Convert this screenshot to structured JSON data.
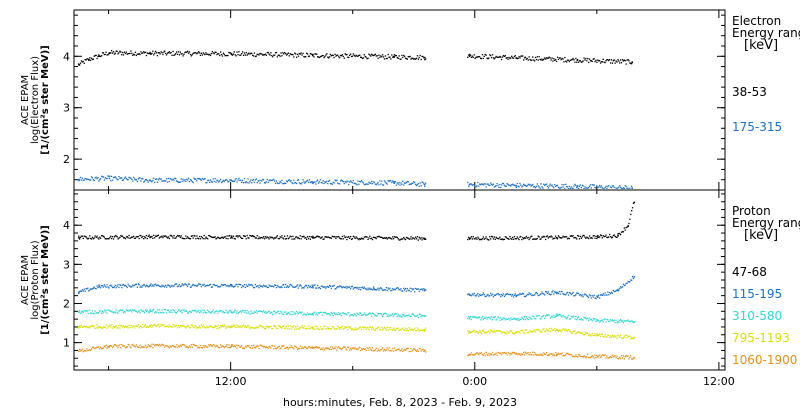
{
  "chart_data": {
    "type": "scatter",
    "xlabel": "hours:minutes, Feb.  8, 2023 - Feb.  9, 2023",
    "x_unit": "hours",
    "xlim": [
      4.3,
      36.3
    ],
    "x_ticks": [
      {
        "value": 12,
        "label": "12:00"
      },
      {
        "value": 24,
        "label": "0:00"
      },
      {
        "value": 36,
        "label": "12:00"
      }
    ],
    "data_gap_hours": [
      21.6,
      23.6
    ],
    "data_end_hours": 31.8,
    "panels": [
      {
        "name": "electron",
        "ylabel_lines": [
          "ACE EPAM",
          "log(Electron Flux)",
          "[1/(cm²s ster MeV)]"
        ],
        "ylim": [
          1.4,
          4.9
        ],
        "y_ticks": [
          2,
          3,
          4
        ],
        "legend_title": [
          "Electron",
          "Energy ranges",
          "[keV]"
        ],
        "series": [
          {
            "name": "38-53",
            "color": "#000000",
            "points": [
              [
                4.5,
                3.85
              ],
              [
                5.0,
                3.95
              ],
              [
                5.5,
                4.02
              ],
              [
                6.0,
                4.08
              ],
              [
                8.0,
                4.07
              ],
              [
                12.0,
                4.06
              ],
              [
                16.0,
                4.03
              ],
              [
                20.0,
                4.0
              ],
              [
                21.5,
                3.99
              ],
              [
                23.7,
                4.02
              ],
              [
                26.0,
                3.98
              ],
              [
                29.0,
                3.94
              ],
              [
                31.7,
                3.9
              ]
            ]
          },
          {
            "name": "175-315",
            "color": "#1c70c8",
            "points": [
              [
                4.5,
                1.62
              ],
              [
                6.0,
                1.64
              ],
              [
                8.0,
                1.6
              ],
              [
                12.0,
                1.6
              ],
              [
                16.0,
                1.57
              ],
              [
                20.0,
                1.55
              ],
              [
                21.5,
                1.52
              ],
              [
                23.7,
                1.52
              ],
              [
                26.0,
                1.5
              ],
              [
                29.0,
                1.48
              ],
              [
                31.7,
                1.45
              ]
            ]
          }
        ]
      },
      {
        "name": "proton",
        "ylabel_lines": [
          "ACE EPAM",
          "log(Proton Flux)",
          "[1/(cm²s ster MeV)]"
        ],
        "ylim": [
          0.3,
          4.9
        ],
        "y_ticks": [
          1,
          2,
          3,
          4
        ],
        "legend_title": [
          "Proton",
          "Energy ranges",
          "[keV]"
        ],
        "series": [
          {
            "name": "47-68",
            "color": "#000000",
            "points": [
              [
                4.5,
                3.7
              ],
              [
                8.0,
                3.72
              ],
              [
                12.0,
                3.71
              ],
              [
                16.0,
                3.7
              ],
              [
                21.5,
                3.68
              ],
              [
                23.7,
                3.68
              ],
              [
                28.0,
                3.7
              ],
              [
                30.0,
                3.72
              ],
              [
                31.0,
                3.75
              ],
              [
                31.5,
                4.0
              ],
              [
                31.8,
                4.6
              ]
            ]
          },
          {
            "name": "115-195",
            "color": "#1c70c8",
            "points": [
              [
                4.5,
                2.3
              ],
              [
                5.5,
                2.45
              ],
              [
                8.0,
                2.48
              ],
              [
                12.0,
                2.47
              ],
              [
                16.0,
                2.45
              ],
              [
                19.0,
                2.4
              ],
              [
                21.5,
                2.35
              ],
              [
                23.7,
                2.25
              ],
              [
                26.0,
                2.22
              ],
              [
                28.0,
                2.3
              ],
              [
                30.0,
                2.18
              ],
              [
                31.0,
                2.35
              ],
              [
                31.8,
                2.7
              ]
            ]
          },
          {
            "name": "310-580",
            "color": "#2fd8d0",
            "points": [
              [
                4.5,
                1.8
              ],
              [
                8.0,
                1.82
              ],
              [
                12.0,
                1.8
              ],
              [
                16.0,
                1.76
              ],
              [
                21.5,
                1.7
              ],
              [
                23.7,
                1.65
              ],
              [
                26.0,
                1.62
              ],
              [
                28.0,
                1.7
              ],
              [
                30.0,
                1.58
              ],
              [
                31.8,
                1.55
              ]
            ]
          },
          {
            "name": "795-1193",
            "color": "#d6e000",
            "points": [
              [
                4.5,
                1.42
              ],
              [
                8.0,
                1.44
              ],
              [
                12.0,
                1.42
              ],
              [
                16.0,
                1.4
              ],
              [
                21.5,
                1.35
              ],
              [
                23.7,
                1.3
              ],
              [
                26.0,
                1.28
              ],
              [
                28.0,
                1.35
              ],
              [
                30.0,
                1.2
              ],
              [
                31.8,
                1.15
              ]
            ]
          },
          {
            "name": "1060-1900",
            "color": "#e8901a",
            "points": [
              [
                4.5,
                0.8
              ],
              [
                6.0,
                0.92
              ],
              [
                8.0,
                0.93
              ],
              [
                12.0,
                0.92
              ],
              [
                16.0,
                0.88
              ],
              [
                21.5,
                0.82
              ],
              [
                23.7,
                0.72
              ],
              [
                26.0,
                0.74
              ],
              [
                28.0,
                0.72
              ],
              [
                30.0,
                0.66
              ],
              [
                31.8,
                0.64
              ]
            ]
          }
        ]
      }
    ]
  }
}
